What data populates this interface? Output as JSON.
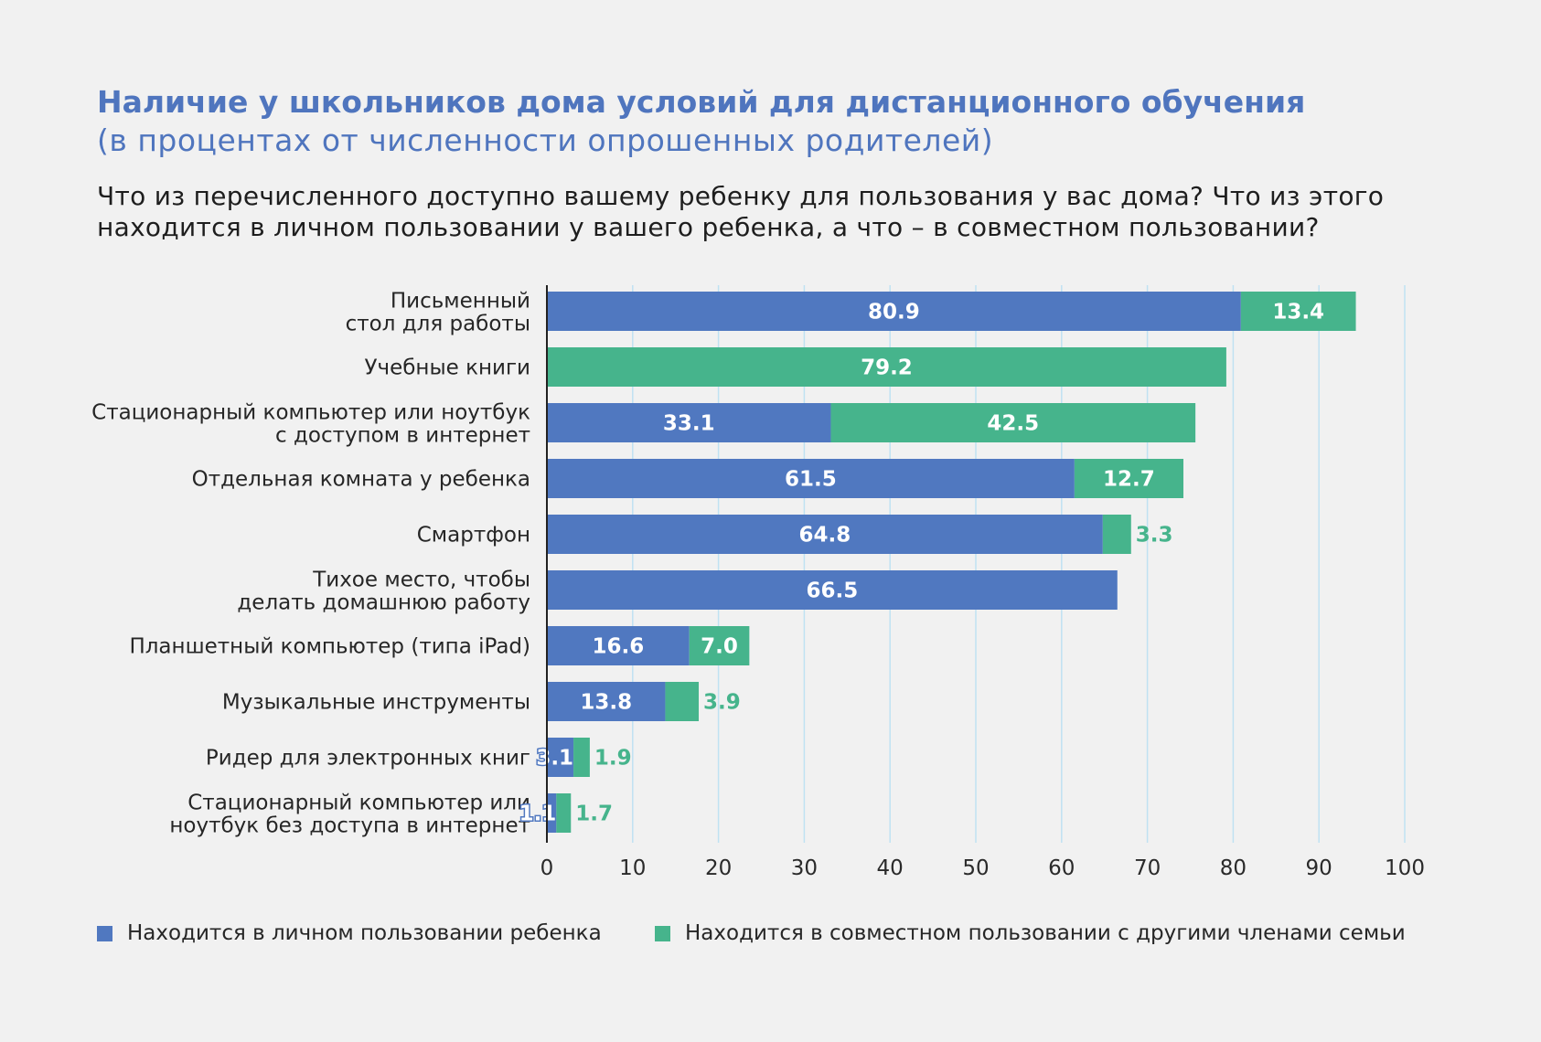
{
  "header": {
    "title": "Наличие у школьников дома условий для дистанционного обучения",
    "subtitle": "(в процентах от численности опрошенных родителей)",
    "question_lines": [
      "Что из перечисленного доступно вашему ребенку для пользования у вас дома? Что из этого",
      "находится в личном пользовании у вашего ребенка, а что – в совместном пользовании?"
    ]
  },
  "colors": {
    "personal": "#5078c0",
    "shared": "#46b48c",
    "grid": "#bfe2f2",
    "axis": "#222222",
    "background": "#f1f1f1"
  },
  "chart_data": {
    "type": "bar",
    "orientation": "horizontal",
    "stacked": true,
    "categories": [
      "Письменный\nстол для работы",
      "Учебные книги",
      "Стационарный компьютер или ноутбук\nс доступом в интернет",
      "Отдельная комната у ребенка",
      "Смартфон",
      "Тихое место, чтобы\nделать домашнюю работу",
      "Планшетный компьютер (типа iPad)",
      "Музыкальные инструменты",
      "Ридер для электронных книг",
      "Стационарный компьютер или\nноутбук без доступа в интернет"
    ],
    "series": [
      {
        "name": "Находится в личном пользовании ребенка",
        "values": [
          80.9,
          null,
          33.1,
          61.5,
          64.8,
          66.5,
          16.6,
          13.8,
          3.1,
          1.1
        ]
      },
      {
        "name": "Находится в совместном пользовании с другими членами семьи",
        "values": [
          13.4,
          79.2,
          42.5,
          12.7,
          3.3,
          null,
          7.0,
          3.9,
          1.9,
          1.7
        ]
      }
    ],
    "xlim": [
      0,
      100
    ],
    "xticks": [
      0,
      10,
      20,
      30,
      40,
      50,
      60,
      70,
      80,
      90,
      100
    ],
    "xlabel": "",
    "ylabel": "",
    "grid": true,
    "legend_position": "bottom"
  }
}
